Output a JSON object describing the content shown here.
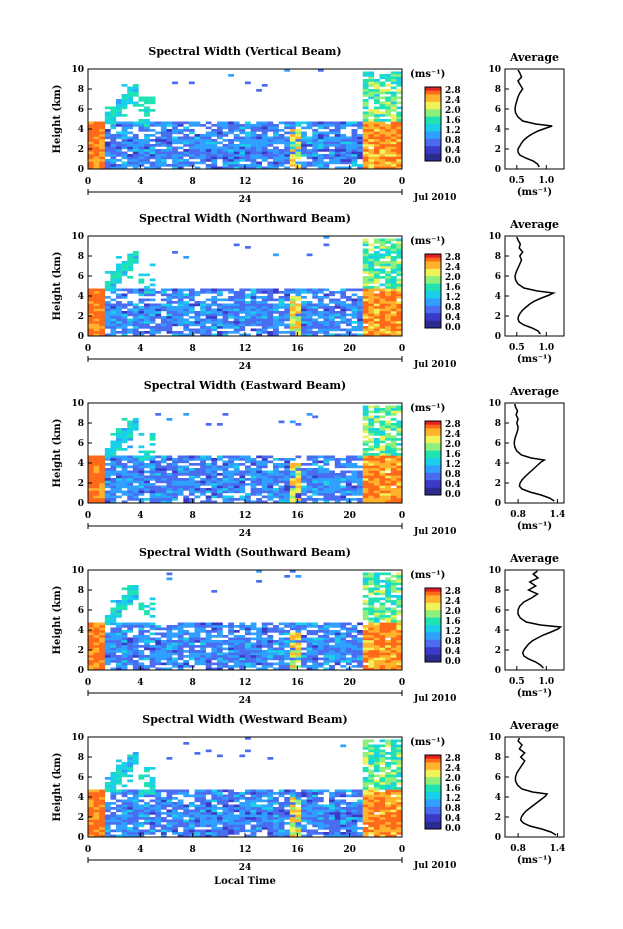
{
  "chart_data": [
    {
      "type": "heatmap",
      "title": "Spectral Width (Vertical Beam)",
      "xlabel": "",
      "ylabel": "Height (km)",
      "xlim": [
        0,
        24
      ],
      "ylim": [
        0,
        10
      ],
      "x_ticks": [
        "0",
        "4",
        "8",
        "12",
        "16",
        "20",
        "0"
      ],
      "y_ticks": [
        "0",
        "2",
        "4",
        "6",
        "8",
        "10"
      ],
      "date_ticks": [
        "24"
      ],
      "date_label": "Jul 2010",
      "colorbar": {
        "label": "(ms⁻¹)",
        "ticks": [
          "0.0",
          "0.4",
          "0.8",
          "1.2",
          "1.6",
          "2.0",
          "2.4",
          "2.8"
        ],
        "range": [
          0,
          3.0
        ]
      },
      "profile": {
        "title": "Average",
        "xlabel": "(ms⁻¹)",
        "x_ticks": [
          "0.5",
          "1.0"
        ],
        "xlim": [
          0.3,
          1.3
        ],
        "y_ticks": [
          "0",
          "2",
          "4",
          "6",
          "8",
          "10"
        ],
        "ylim": [
          0,
          10
        ],
        "points": [
          [
            0.88,
            0.2
          ],
          [
            0.85,
            0.5
          ],
          [
            0.78,
            0.8
          ],
          [
            0.65,
            1.1
          ],
          [
            0.55,
            1.4
          ],
          [
            0.52,
            1.7
          ],
          [
            0.52,
            2.0
          ],
          [
            0.55,
            2.3
          ],
          [
            0.58,
            2.6
          ],
          [
            0.62,
            2.9
          ],
          [
            0.68,
            3.2
          ],
          [
            0.76,
            3.5
          ],
          [
            0.86,
            3.8
          ],
          [
            1.0,
            4.1
          ],
          [
            1.1,
            4.3
          ],
          [
            0.82,
            4.5
          ],
          [
            0.6,
            4.8
          ],
          [
            0.52,
            5.2
          ],
          [
            0.48,
            5.6
          ],
          [
            0.47,
            6.0
          ],
          [
            0.48,
            6.4
          ],
          [
            0.5,
            6.8
          ],
          [
            0.52,
            7.2
          ],
          [
            0.55,
            7.6
          ],
          [
            0.6,
            8.0
          ],
          [
            0.56,
            8.4
          ],
          [
            0.52,
            8.8
          ],
          [
            0.58,
            9.2
          ],
          [
            0.55,
            9.6
          ],
          [
            0.52,
            9.9
          ]
        ]
      }
    },
    {
      "type": "heatmap",
      "title": "Spectral Width (Northward Beam)",
      "xlabel": "",
      "ylabel": "Height (km)",
      "xlim": [
        0,
        24
      ],
      "ylim": [
        0,
        10
      ],
      "x_ticks": [
        "0",
        "4",
        "8",
        "12",
        "16",
        "20",
        "0"
      ],
      "y_ticks": [
        "0",
        "2",
        "4",
        "6",
        "8",
        "10"
      ],
      "date_ticks": [
        "24"
      ],
      "date_label": "Jul 2010",
      "colorbar": {
        "label": "(ms⁻¹)",
        "ticks": [
          "0.0",
          "0.4",
          "0.8",
          "1.2",
          "1.6",
          "2.0",
          "2.4",
          "2.8"
        ],
        "range": [
          0,
          3.0
        ]
      },
      "profile": {
        "title": "Average",
        "xlabel": "(ms⁻¹)",
        "x_ticks": [
          "0.5",
          "1.0"
        ],
        "xlim": [
          0.3,
          1.3
        ],
        "y_ticks": [
          "0",
          "2",
          "4",
          "6",
          "8",
          "10"
        ],
        "ylim": [
          0,
          10
        ],
        "points": [
          [
            0.9,
            0.2
          ],
          [
            0.86,
            0.5
          ],
          [
            0.76,
            0.8
          ],
          [
            0.62,
            1.1
          ],
          [
            0.54,
            1.4
          ],
          [
            0.52,
            1.7
          ],
          [
            0.53,
            2.0
          ],
          [
            0.56,
            2.3
          ],
          [
            0.6,
            2.6
          ],
          [
            0.66,
            2.9
          ],
          [
            0.72,
            3.2
          ],
          [
            0.8,
            3.5
          ],
          [
            0.92,
            3.8
          ],
          [
            1.05,
            4.1
          ],
          [
            1.12,
            4.3
          ],
          [
            0.85,
            4.5
          ],
          [
            0.62,
            4.8
          ],
          [
            0.52,
            5.2
          ],
          [
            0.48,
            5.6
          ],
          [
            0.47,
            6.0
          ],
          [
            0.49,
            6.4
          ],
          [
            0.52,
            6.8
          ],
          [
            0.55,
            7.2
          ],
          [
            0.58,
            7.6
          ],
          [
            0.55,
            8.0
          ],
          [
            0.6,
            8.4
          ],
          [
            0.54,
            8.8
          ],
          [
            0.56,
            9.2
          ],
          [
            0.52,
            9.6
          ],
          [
            0.5,
            9.9
          ]
        ]
      }
    },
    {
      "type": "heatmap",
      "title": "Spectral Width (Eastward Beam)",
      "xlabel": "",
      "ylabel": "Height (km)",
      "xlim": [
        0,
        24
      ],
      "ylim": [
        0,
        10
      ],
      "x_ticks": [
        "0",
        "4",
        "8",
        "12",
        "16",
        "20",
        "0"
      ],
      "y_ticks": [
        "0",
        "2",
        "4",
        "6",
        "8",
        "10"
      ],
      "date_ticks": [
        "24"
      ],
      "date_label": "Jul 2010",
      "colorbar": {
        "label": "(ms⁻¹)",
        "ticks": [
          "0.0",
          "0.4",
          "0.8",
          "1.2",
          "1.6",
          "2.0",
          "2.4",
          "2.8"
        ],
        "range": [
          0,
          3.0
        ]
      },
      "profile": {
        "title": "Average",
        "xlabel": "(ms⁻¹)",
        "x_ticks": [
          "0.8",
          "1.4"
        ],
        "xlim": [
          0.6,
          1.5
        ],
        "y_ticks": [
          "0",
          "2",
          "4",
          "6",
          "8",
          "10"
        ],
        "ylim": [
          0,
          10
        ],
        "points": [
          [
            1.35,
            0.2
          ],
          [
            1.28,
            0.5
          ],
          [
            1.15,
            0.8
          ],
          [
            0.98,
            1.1
          ],
          [
            0.86,
            1.4
          ],
          [
            0.82,
            1.7
          ],
          [
            0.83,
            2.0
          ],
          [
            0.86,
            2.3
          ],
          [
            0.9,
            2.6
          ],
          [
            0.95,
            2.9
          ],
          [
            1.0,
            3.2
          ],
          [
            1.05,
            3.5
          ],
          [
            1.1,
            3.8
          ],
          [
            1.15,
            4.1
          ],
          [
            1.2,
            4.3
          ],
          [
            1.0,
            4.5
          ],
          [
            0.85,
            4.8
          ],
          [
            0.78,
            5.2
          ],
          [
            0.75,
            5.6
          ],
          [
            0.74,
            6.0
          ],
          [
            0.75,
            6.4
          ],
          [
            0.77,
            6.8
          ],
          [
            0.79,
            7.2
          ],
          [
            0.8,
            7.6
          ],
          [
            0.78,
            8.0
          ],
          [
            0.8,
            8.4
          ],
          [
            0.77,
            8.8
          ],
          [
            0.79,
            9.2
          ],
          [
            0.76,
            9.6
          ],
          [
            0.75,
            9.9
          ]
        ]
      }
    },
    {
      "type": "heatmap",
      "title": "Spectral Width (Southward Beam)",
      "xlabel": "",
      "ylabel": "Height (km)",
      "xlim": [
        0,
        24
      ],
      "ylim": [
        0,
        10
      ],
      "x_ticks": [
        "0",
        "4",
        "8",
        "12",
        "16",
        "20",
        "0"
      ],
      "y_ticks": [
        "0",
        "2",
        "4",
        "6",
        "8",
        "10"
      ],
      "date_ticks": [
        "24"
      ],
      "date_label": "Jul 2010",
      "colorbar": {
        "label": "(ms⁻¹)",
        "ticks": [
          "0.0",
          "0.4",
          "0.8",
          "1.2",
          "1.6",
          "2.0",
          "2.4",
          "2.8"
        ],
        "range": [
          0,
          3.0
        ]
      },
      "profile": {
        "title": "Average",
        "xlabel": "(ms⁻¹)",
        "x_ticks": [
          "0.5",
          "1.0"
        ],
        "xlim": [
          0.3,
          1.3
        ],
        "y_ticks": [
          "0",
          "2",
          "4",
          "6",
          "8",
          "10"
        ],
        "ylim": [
          0,
          10
        ],
        "points": [
          [
            0.95,
            0.2
          ],
          [
            0.9,
            0.5
          ],
          [
            0.82,
            0.8
          ],
          [
            0.7,
            1.1
          ],
          [
            0.62,
            1.4
          ],
          [
            0.6,
            1.7
          ],
          [
            0.62,
            2.0
          ],
          [
            0.66,
            2.3
          ],
          [
            0.7,
            2.6
          ],
          [
            0.76,
            2.9
          ],
          [
            0.85,
            3.2
          ],
          [
            0.95,
            3.5
          ],
          [
            1.08,
            3.8
          ],
          [
            1.2,
            4.1
          ],
          [
            1.24,
            4.3
          ],
          [
            0.9,
            4.5
          ],
          [
            0.66,
            4.8
          ],
          [
            0.56,
            5.2
          ],
          [
            0.52,
            5.6
          ],
          [
            0.52,
            6.0
          ],
          [
            0.55,
            6.4
          ],
          [
            0.62,
            6.8
          ],
          [
            0.75,
            7.2
          ],
          [
            0.85,
            7.6
          ],
          [
            0.7,
            8.0
          ],
          [
            0.82,
            8.4
          ],
          [
            0.72,
            8.8
          ],
          [
            0.86,
            9.2
          ],
          [
            0.78,
            9.6
          ],
          [
            0.85,
            9.9
          ]
        ]
      }
    },
    {
      "type": "heatmap",
      "title": "Spectral Width (Westward Beam)",
      "xlabel": "Local Time",
      "ylabel": "Height (km)",
      "xlim": [
        0,
        24
      ],
      "ylim": [
        0,
        10
      ],
      "x_ticks": [
        "0",
        "4",
        "8",
        "12",
        "16",
        "20",
        "0"
      ],
      "y_ticks": [
        "0",
        "2",
        "4",
        "6",
        "8",
        "10"
      ],
      "date_ticks": [
        "24"
      ],
      "date_label": "Jul 2010",
      "colorbar": {
        "label": "(ms⁻¹)",
        "ticks": [
          "0.0",
          "0.4",
          "0.8",
          "1.2",
          "1.6",
          "2.0",
          "2.4",
          "2.8"
        ],
        "range": [
          0,
          3.0
        ]
      },
      "profile": {
        "title": "Average",
        "xlabel": "(ms⁻¹)",
        "x_ticks": [
          "0.8",
          "1.4"
        ],
        "xlim": [
          0.6,
          1.5
        ],
        "y_ticks": [
          "0",
          "2",
          "4",
          "6",
          "8",
          "10"
        ],
        "ylim": [
          0,
          10
        ],
        "points": [
          [
            1.38,
            0.2
          ],
          [
            1.3,
            0.5
          ],
          [
            1.16,
            0.8
          ],
          [
            0.98,
            1.1
          ],
          [
            0.88,
            1.4
          ],
          [
            0.84,
            1.7
          ],
          [
            0.85,
            2.0
          ],
          [
            0.88,
            2.3
          ],
          [
            0.92,
            2.6
          ],
          [
            0.98,
            2.9
          ],
          [
            1.04,
            3.2
          ],
          [
            1.1,
            3.5
          ],
          [
            1.16,
            3.8
          ],
          [
            1.22,
            4.1
          ],
          [
            1.24,
            4.3
          ],
          [
            1.02,
            4.5
          ],
          [
            0.86,
            4.8
          ],
          [
            0.79,
            5.2
          ],
          [
            0.76,
            5.6
          ],
          [
            0.76,
            6.0
          ],
          [
            0.78,
            6.4
          ],
          [
            0.82,
            6.8
          ],
          [
            0.86,
            7.2
          ],
          [
            0.9,
            7.6
          ],
          [
            0.84,
            8.0
          ],
          [
            0.9,
            8.4
          ],
          [
            0.82,
            8.8
          ],
          [
            0.86,
            9.2
          ],
          [
            0.8,
            9.6
          ],
          [
            0.82,
            9.9
          ]
        ]
      }
    }
  ],
  "colors": {
    "background": "#ffffff",
    "axis": "#000000",
    "profile_line": "#000000",
    "colormap": [
      "#2b2b8f",
      "#3a3ac9",
      "#4a6cf0",
      "#2fa0ff",
      "#19d0e8",
      "#1fe3b0",
      "#8ef07a",
      "#f0f25a",
      "#ffb22a",
      "#ff6a1a",
      "#e32222"
    ]
  }
}
